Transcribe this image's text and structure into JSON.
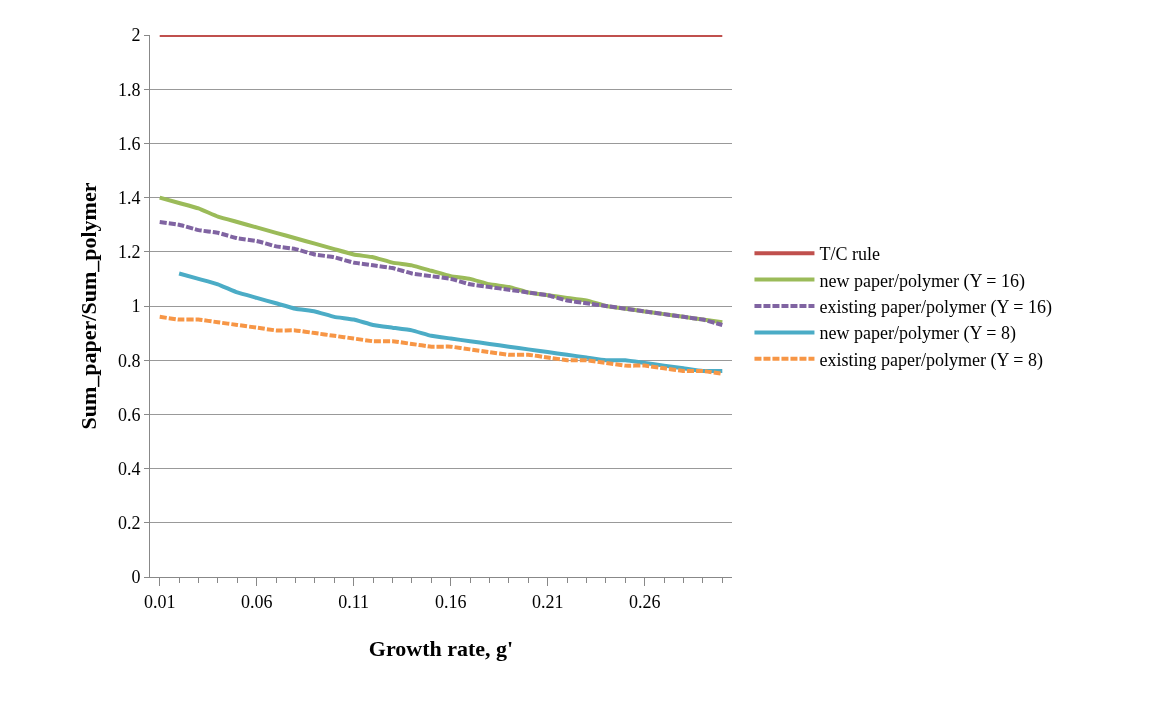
{
  "chart_data": {
    "type": "line",
    "xlabel": "Growth rate, g'",
    "ylabel": "Sum_paper/Sum_polymer",
    "categories": [
      "0.01",
      null,
      null,
      null,
      null,
      "0.06",
      null,
      null,
      null,
      null,
      "0.11",
      null,
      null,
      null,
      null,
      "0.16",
      null,
      null,
      null,
      null,
      "0.21",
      null,
      null,
      null,
      null,
      "0.26",
      null,
      null,
      null,
      null
    ],
    "ylim": [
      0,
      2
    ],
    "yticks": [
      0,
      0.2,
      0.4,
      0.6,
      0.8,
      1,
      1.2,
      1.4,
      1.6,
      1.8,
      2
    ],
    "grid": "y",
    "legend": "right",
    "marker": "none",
    "series": [
      {
        "name": "T/C rule",
        "color": "#c0504d",
        "line_style": "solid",
        "values": [
          2,
          2,
          2,
          2,
          2,
          2,
          2,
          2,
          2,
          2,
          2,
          2,
          2,
          2,
          2,
          2,
          2,
          2,
          2,
          2,
          2,
          2,
          2,
          2,
          2,
          2,
          2,
          2,
          2,
          2
        ]
      },
      {
        "name": "new paper/polymer (Y = 16)",
        "color": "#9bbb59",
        "line_style": "solid",
        "values": [
          1.4,
          1.38,
          1.36,
          1.33,
          1.31,
          1.29,
          1.27,
          1.25,
          1.23,
          1.21,
          1.19,
          1.18,
          1.16,
          1.15,
          1.13,
          1.11,
          1.1,
          1.08,
          1.07,
          1.05,
          1.04,
          1.03,
          1.02,
          1.0,
          0.99,
          0.98,
          0.97,
          0.96,
          0.95,
          0.94
        ]
      },
      {
        "name": "existing paper/polymer (Y = 16)",
        "color": "#8064a2",
        "line_style": "dashed",
        "values": [
          1.31,
          1.3,
          1.28,
          1.27,
          1.25,
          1.24,
          1.22,
          1.21,
          1.19,
          1.18,
          1.16,
          1.15,
          1.14,
          1.12,
          1.11,
          1.1,
          1.08,
          1.07,
          1.06,
          1.05,
          1.04,
          1.02,
          1.01,
          1.0,
          0.99,
          0.98,
          0.97,
          0.96,
          0.95,
          0.93
        ]
      },
      {
        "name": "new paper/polymer (Y = 8)",
        "color": "#4bacc6",
        "line_style": "solid",
        "values": [
          null,
          1.12,
          1.1,
          1.08,
          1.05,
          1.03,
          1.01,
          0.99,
          0.98,
          0.96,
          0.95,
          0.93,
          0.92,
          0.91,
          0.89,
          0.88,
          0.87,
          0.86,
          0.85,
          0.84,
          0.83,
          0.82,
          0.81,
          0.8,
          0.8,
          0.79,
          0.78,
          0.77,
          0.76,
          0.76
        ]
      },
      {
        "name": "existing paper/polymer (Y = 8)",
        "color": "#f79646",
        "line_style": "dashed",
        "values": [
          0.96,
          0.95,
          0.95,
          0.94,
          0.93,
          0.92,
          0.91,
          0.91,
          0.9,
          0.89,
          0.88,
          0.87,
          0.87,
          0.86,
          0.85,
          0.85,
          0.84,
          0.83,
          0.82,
          0.82,
          0.81,
          0.8,
          0.8,
          0.79,
          0.78,
          0.78,
          0.77,
          0.76,
          0.76,
          0.75
        ]
      }
    ]
  }
}
